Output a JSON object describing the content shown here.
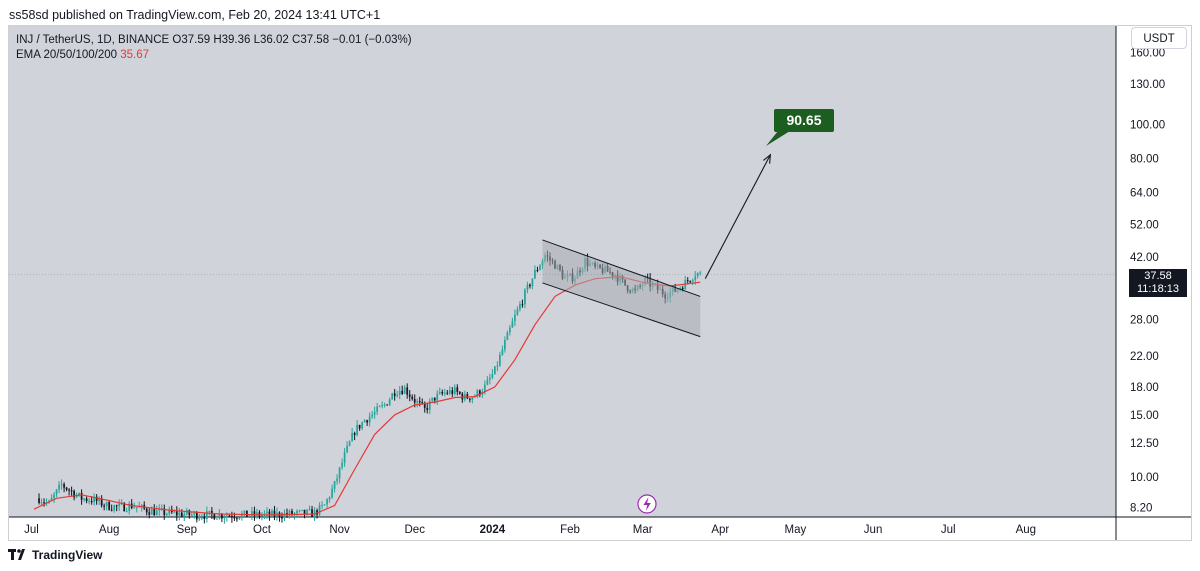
{
  "header": {
    "published_text": "ss58sd published on TradingView.com, Feb 20, 2024 13:41 UTC+1"
  },
  "legend": {
    "symbol": "INJ / TetherUS, 1D, BINANCE",
    "o_label": "O",
    "o_value": "37.59",
    "h_label": "H",
    "h_value": "39.36",
    "l_label": "L",
    "l_value": "36.02",
    "c_label": "C",
    "c_value": "37.58",
    "change": "−0.01 (−0.03%)",
    "ema_label": "EMA 20/50/100/200",
    "ema_value": "35.67"
  },
  "currency_button": "USDT",
  "last_price": {
    "price": "37.58",
    "countdown": "11:18:13"
  },
  "target_label": "90.65",
  "footer": {
    "brand": "TradingView"
  },
  "colors": {
    "plot_bg": "#d1d3db",
    "candle_up": "#26a69a",
    "candle_down": "#131722",
    "ema": "#e53935",
    "channel_fill": "#a9abb1",
    "target_badge": "#1b5e20"
  },
  "chart_data": {
    "type": "candlestick",
    "title": "INJ / TetherUS, 1D, BINANCE",
    "x_ticks": [
      "Jul",
      "Aug",
      "Sep",
      "Oct",
      "Nov",
      "Dec",
      "2024",
      "Feb",
      "Mar",
      "Apr",
      "May",
      "Jun",
      "Jul",
      "Aug"
    ],
    "y_ticks": [
      160.0,
      130.0,
      100.0,
      80.0,
      64.0,
      52.0,
      42.0,
      28.0,
      22.0,
      18.0,
      15.0,
      12.5,
      10.0,
      8.2
    ],
    "y_tick_labels": [
      "160.00",
      "130.00",
      "100.00",
      "80.00",
      "64.00",
      "52.00",
      "42.00",
      "28.00",
      "22.00",
      "18.00",
      "15.00",
      "12.50",
      "10.00",
      "8.20"
    ],
    "y_scale": "log",
    "ylim": [
      7.7,
      190
    ],
    "x_domain_days": [
      0,
      434
    ],
    "x_origin_date": "2023-06-26",
    "close_series": [
      [
        8,
        8.7
      ],
      [
        12,
        8.4
      ],
      [
        17,
        9.5
      ],
      [
        21,
        9.1
      ],
      [
        25,
        8.7
      ],
      [
        30,
        8.6
      ],
      [
        35,
        8.3
      ],
      [
        40,
        8.2
      ],
      [
        45,
        8.3
      ],
      [
        50,
        8.1
      ],
      [
        55,
        7.95
      ],
      [
        60,
        7.9
      ],
      [
        70,
        7.8
      ],
      [
        80,
        7.8
      ],
      [
        90,
        7.8
      ],
      [
        100,
        7.8
      ],
      [
        110,
        7.85
      ],
      [
        118,
        7.9
      ],
      [
        122,
        8.3
      ],
      [
        126,
        9.5
      ],
      [
        130,
        11.5
      ],
      [
        134,
        13.5
      ],
      [
        138,
        14.5
      ],
      [
        142,
        15.2
      ],
      [
        146,
        16.0
      ],
      [
        150,
        17.5
      ],
      [
        154,
        17.8
      ],
      [
        158,
        16.5
      ],
      [
        162,
        15.5
      ],
      [
        166,
        16.8
      ],
      [
        170,
        17.3
      ],
      [
        174,
        17.5
      ],
      [
        178,
        16.8
      ],
      [
        182,
        17.0
      ],
      [
        186,
        18.0
      ],
      [
        190,
        20.0
      ],
      [
        194,
        24.0
      ],
      [
        198,
        28.5
      ],
      [
        202,
        33.0
      ],
      [
        206,
        38.0
      ],
      [
        210,
        42.5
      ],
      [
        214,
        40.0
      ],
      [
        218,
        36.5
      ],
      [
        222,
        37.0
      ],
      [
        226,
        41.0
      ],
      [
        230,
        39.0
      ],
      [
        234,
        38.5
      ],
      [
        238,
        37.5
      ],
      [
        242,
        35.0
      ],
      [
        246,
        33.5
      ],
      [
        250,
        36.0
      ],
      [
        254,
        34.5
      ],
      [
        258,
        33.0
      ],
      [
        262,
        33.8
      ],
      [
        266,
        35.5
      ],
      [
        270,
        37.8
      ],
      [
        272,
        37.6
      ]
    ],
    "ema_series": [
      [
        6,
        8.1
      ],
      [
        15,
        8.7
      ],
      [
        25,
        8.9
      ],
      [
        35,
        8.6
      ],
      [
        45,
        8.3
      ],
      [
        60,
        8.05
      ],
      [
        80,
        7.85
      ],
      [
        100,
        7.8
      ],
      [
        118,
        7.85
      ],
      [
        126,
        8.3
      ],
      [
        134,
        10.5
      ],
      [
        142,
        13.2
      ],
      [
        150,
        15.0
      ],
      [
        158,
        16.0
      ],
      [
        166,
        16.3
      ],
      [
        174,
        16.8
      ],
      [
        182,
        16.9
      ],
      [
        190,
        18.0
      ],
      [
        198,
        21.5
      ],
      [
        206,
        27.0
      ],
      [
        214,
        32.5
      ],
      [
        222,
        35.0
      ],
      [
        230,
        36.5
      ],
      [
        240,
        37.0
      ],
      [
        250,
        35.5
      ],
      [
        260,
        34.8
      ],
      [
        272,
        35.67
      ]
    ],
    "annotations": {
      "channel_upper": [
        [
          209,
          47.0
        ],
        [
          272,
          32.5
        ]
      ],
      "channel_lower": [
        [
          209,
          35.5
        ],
        [
          272,
          25.0
        ]
      ],
      "arrow": {
        "from": [
          274,
          36.5
        ],
        "to": [
          300,
          82.0
        ]
      },
      "target": {
        "value": 90.65,
        "label": "90.65"
      }
    },
    "last_close": 37.58
  }
}
